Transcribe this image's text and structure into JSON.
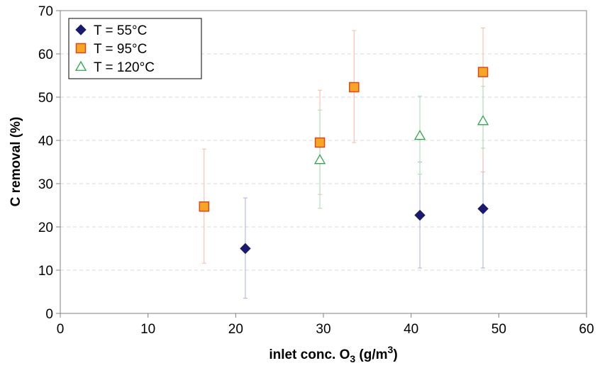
{
  "chart_data": {
    "type": "scatter",
    "xlabel": "inlet conc. O",
    "xlabel_sub": "3",
    "xlabel_rest": " (g/m",
    "xlabel_sup": "3",
    "xlabel_end": ")",
    "ylabel": "C removal (%)",
    "xlim": [
      0,
      60
    ],
    "ylim": [
      0,
      70
    ],
    "x_ticks": [
      0,
      10,
      20,
      30,
      40,
      50,
      60
    ],
    "y_ticks": [
      0,
      10,
      20,
      30,
      40,
      50,
      60,
      70
    ],
    "grid": "horizontal dashed",
    "legend_position": "top-left",
    "series": [
      {
        "name": "T = 55°C",
        "marker": "diamond",
        "color": "#1a1a6e",
        "error_color": "#aab0dc",
        "points": [
          {
            "x": 21.1,
            "y": 15.0,
            "err_low": 3.5,
            "err_high": 26.7
          },
          {
            "x": 41.0,
            "y": 22.7,
            "err_low": 10.5,
            "err_high": 35.0
          },
          {
            "x": 48.2,
            "y": 24.2,
            "err_low": 10.5,
            "err_high": 38.2
          }
        ]
      },
      {
        "name": "T = 95°C",
        "marker": "square",
        "color": "#f5a623",
        "edge_color": "#e0461a",
        "error_color": "#f4b9a8",
        "points": [
          {
            "x": 16.4,
            "y": 24.7,
            "err_low": 11.6,
            "err_high": 38.0
          },
          {
            "x": 29.6,
            "y": 39.5,
            "err_low": 27.5,
            "err_high": 51.6
          },
          {
            "x": 33.5,
            "y": 52.3,
            "err_low": 39.5,
            "err_high": 65.4
          },
          {
            "x": 48.2,
            "y": 55.8,
            "err_low": 32.7,
            "err_high": 66.0
          }
        ]
      },
      {
        "name": "T = 120°C",
        "marker": "triangle",
        "color": "#ffffff",
        "edge_color": "#2aa84a",
        "error_color": "#a6dcb4",
        "points": [
          {
            "x": 29.6,
            "y": 35.5,
            "err_low": 24.3,
            "err_high": 47.0
          },
          {
            "x": 41.0,
            "y": 41.1,
            "err_low": 32.2,
            "err_high": 50.2
          },
          {
            "x": 48.2,
            "y": 44.5,
            "err_low": 38.2,
            "err_high": 52.5
          }
        ]
      }
    ]
  }
}
